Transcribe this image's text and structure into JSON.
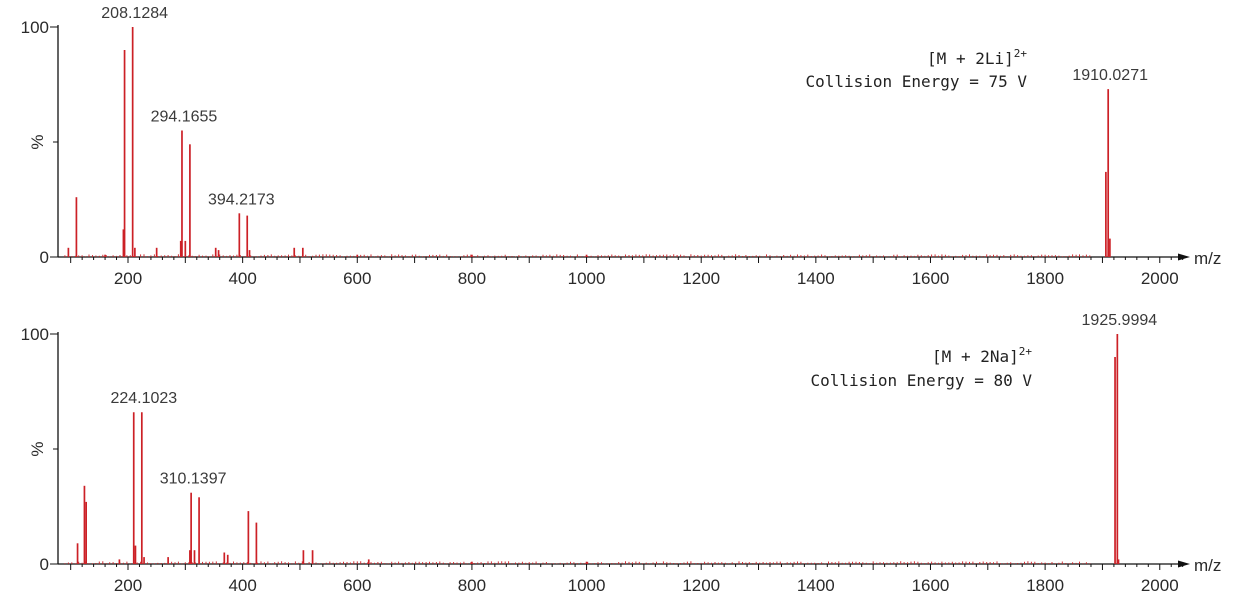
{
  "chart_data": [
    {
      "type": "bar",
      "title": "",
      "annotation": {
        "ion": "[M + 2Li]",
        "charge": "2+",
        "energy": "Collision Energy = 75 V"
      },
      "xlabel": "m/z",
      "ylabel": "%",
      "xlim": [
        80,
        2050
      ],
      "ylim": [
        0,
        100
      ],
      "x_ticks": [
        200,
        400,
        600,
        800,
        1000,
        1200,
        1400,
        1600,
        1800,
        2000
      ],
      "y_ticks": [
        0,
        100
      ],
      "color": "#cc2026",
      "peaks": [
        {
          "mz": 96,
          "value": 4
        },
        {
          "mz": 110,
          "value": 26
        },
        {
          "mz": 160,
          "value": 1
        },
        {
          "mz": 192,
          "value": 12
        },
        {
          "mz": 194,
          "value": 90
        },
        {
          "mz": 208.1284,
          "value": 100,
          "label": "208.1284"
        },
        {
          "mz": 212,
          "value": 4
        },
        {
          "mz": 250,
          "value": 4
        },
        {
          "mz": 292,
          "value": 7
        },
        {
          "mz": 294.1655,
          "value": 55,
          "label": "294.1655"
        },
        {
          "mz": 300,
          "value": 7
        },
        {
          "mz": 308,
          "value": 49
        },
        {
          "mz": 353,
          "value": 4
        },
        {
          "mz": 358,
          "value": 3
        },
        {
          "mz": 394.2173,
          "value": 19,
          "label": "394.2173"
        },
        {
          "mz": 408,
          "value": 18
        },
        {
          "mz": 412,
          "value": 3
        },
        {
          "mz": 490,
          "value": 4
        },
        {
          "mz": 505,
          "value": 4
        },
        {
          "mz": 600,
          "value": 1
        },
        {
          "mz": 800,
          "value": 1
        },
        {
          "mz": 1000,
          "value": 1
        },
        {
          "mz": 1906,
          "value": 37
        },
        {
          "mz": 1910.0271,
          "value": 73,
          "label": "1910.0271"
        },
        {
          "mz": 1913,
          "value": 8
        }
      ]
    },
    {
      "type": "bar",
      "title": "",
      "annotation": {
        "ion": "[M + 2Na]",
        "charge": "2+",
        "energy": "Collision Energy = 80 V"
      },
      "xlabel": "m/z",
      "ylabel": "%",
      "xlim": [
        80,
        2050
      ],
      "ylim": [
        0,
        100
      ],
      "x_ticks": [
        200,
        400,
        600,
        800,
        1000,
        1200,
        1400,
        1600,
        1800,
        2000
      ],
      "y_ticks": [
        0,
        100
      ],
      "color": "#cc2026",
      "peaks": [
        {
          "mz": 112,
          "value": 9
        },
        {
          "mz": 124,
          "value": 34
        },
        {
          "mz": 127,
          "value": 27
        },
        {
          "mz": 185,
          "value": 2
        },
        {
          "mz": 210,
          "value": 66
        },
        {
          "mz": 213,
          "value": 8
        },
        {
          "mz": 224.1023,
          "value": 66,
          "label": "224.1023"
        },
        {
          "mz": 228,
          "value": 3
        },
        {
          "mz": 270,
          "value": 3
        },
        {
          "mz": 308,
          "value": 6
        },
        {
          "mz": 310.1397,
          "value": 31,
          "label": "310.1397"
        },
        {
          "mz": 316,
          "value": 6
        },
        {
          "mz": 324,
          "value": 29
        },
        {
          "mz": 368,
          "value": 5
        },
        {
          "mz": 374,
          "value": 4
        },
        {
          "mz": 410,
          "value": 23
        },
        {
          "mz": 424,
          "value": 18
        },
        {
          "mz": 506,
          "value": 6
        },
        {
          "mz": 522,
          "value": 6
        },
        {
          "mz": 620,
          "value": 2
        },
        {
          "mz": 800,
          "value": 1
        },
        {
          "mz": 1000,
          "value": 1
        },
        {
          "mz": 1922,
          "value": 90
        },
        {
          "mz": 1925.9994,
          "value": 100,
          "label": "1925.9994"
        },
        {
          "mz": 1928,
          "value": 2
        }
      ]
    }
  ]
}
